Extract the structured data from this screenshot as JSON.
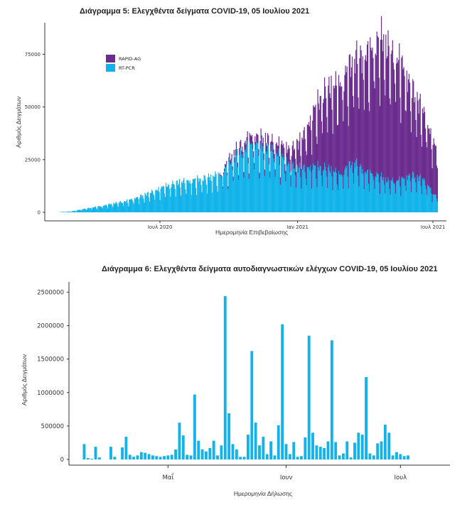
{
  "colors": {
    "rapid": "#6a2c8e",
    "pcr": "#11b3ea",
    "axis": "#333333",
    "tick": "#333333"
  },
  "chart_data": [
    {
      "type": "bar",
      "stacked": true,
      "title": "Διάγραμμα 5: Ελεγχθέντα δείγματα COVID-19, 05 Ιουλίου 2021",
      "xlabel": "Ημερομηνία Επιβεβαίωσης",
      "ylabel": "Αριθμός Δειγμάτων",
      "ylim": [
        0,
        90000
      ],
      "yticks": [
        0,
        25000,
        50000,
        75000
      ],
      "ytick_labels": [
        "0",
        "25000",
        "50000",
        "75000"
      ],
      "xlim_days": [
        0,
        537
      ],
      "xticks": [
        {
          "day": 154,
          "label": "Ιουλ 2020"
        },
        {
          "day": 338,
          "label": "Ιαν 2021"
        },
        {
          "day": 519,
          "label": "Ιουλ 2021"
        }
      ],
      "legend": [
        {
          "name": "RAPID-AG",
          "color": "#6a2c8e"
        },
        {
          "name": "RT-PCR",
          "color": "#11b3ea"
        }
      ],
      "legend_position": "top-left",
      "series": [
        {
          "name": "RT-PCR",
          "day_start": 20,
          "day_end": 525,
          "weekly_low_ratio": 0.55,
          "anchors": [
            [
              20,
              150
            ],
            [
              35,
              400
            ],
            [
              50,
              1500
            ],
            [
              75,
              3000
            ],
            [
              95,
              4500
            ],
            [
              110,
              5500
            ],
            [
              130,
              8000
            ],
            [
              145,
              10000
            ],
            [
              160,
              12500
            ],
            [
              180,
              14500
            ],
            [
              200,
              15500
            ],
            [
              215,
              16500
            ],
            [
              225,
              17500
            ],
            [
              235,
              18000
            ],
            [
              255,
              27000
            ],
            [
              280,
              33000
            ],
            [
              300,
              30000
            ],
            [
              315,
              27000
            ],
            [
              330,
              22000
            ],
            [
              345,
              21000
            ],
            [
              360,
              22000
            ],
            [
              380,
              21000
            ],
            [
              395,
              18000
            ],
            [
              405,
              22000
            ],
            [
              415,
              24000
            ],
            [
              430,
              19000
            ],
            [
              445,
              18000
            ],
            [
              460,
              15000
            ],
            [
              475,
              15500
            ],
            [
              490,
              18000
            ],
            [
              505,
              16000
            ],
            [
              515,
              12000
            ],
            [
              520,
              8000
            ],
            [
              525,
              9000
            ]
          ]
        },
        {
          "name": "RAPID-AG",
          "day_start": 232,
          "day_end": 525,
          "weekly_low_ratio": 0.7,
          "anchors": [
            [
              232,
              0
            ],
            [
              245,
              2000
            ],
            [
              255,
              3000
            ],
            [
              270,
              4000
            ],
            [
              285,
              4000
            ],
            [
              300,
              4500
            ],
            [
              315,
              5500
            ],
            [
              330,
              8000
            ],
            [
              345,
              15000
            ],
            [
              360,
              27000
            ],
            [
              375,
              37000
            ],
            [
              390,
              42000
            ],
            [
              405,
              46000
            ],
            [
              420,
              52000
            ],
            [
              435,
              58000
            ],
            [
              445,
              64000
            ],
            [
              452,
              67000
            ],
            [
              460,
              62000
            ],
            [
              475,
              57000
            ],
            [
              490,
              42000
            ],
            [
              505,
              33000
            ],
            [
              515,
              27000
            ],
            [
              525,
              22000
            ]
          ]
        }
      ]
    },
    {
      "type": "bar",
      "title": "Διάγραμμα 6: Ελεγχθέντα δείγματα αυτοδιαγνωστικών ελέγχων COVID-19, 05 Ιουλίου 2021",
      "xlabel": "Ημερομηνία Δήλωσης",
      "ylabel": "Αριθμός Δειγμάτων",
      "ylim": [
        0,
        2600000
      ],
      "yticks": [
        0,
        500000,
        1000000,
        1500000,
        2000000,
        2500000
      ],
      "ytick_labels": [
        "0",
        "500000",
        "1000000",
        "1500000",
        "2000000",
        "2500000"
      ],
      "xlim_days": [
        0,
        100
      ],
      "xticks": [
        {
          "day": 26,
          "label": "Μαΐ"
        },
        {
          "day": 57,
          "label": "Ιουν"
        },
        {
          "day": 87,
          "label": "Ιουλ"
        }
      ],
      "day_start": 4,
      "values": [
        230000,
        20000,
        10000,
        190000,
        30000,
        0,
        0,
        190000,
        40000,
        0,
        180000,
        340000,
        70000,
        40000,
        60000,
        110000,
        100000,
        80000,
        60000,
        50000,
        40000,
        50000,
        60000,
        70000,
        150000,
        550000,
        360000,
        70000,
        60000,
        970000,
        280000,
        150000,
        120000,
        170000,
        280000,
        60000,
        210000,
        2440000,
        690000,
        230000,
        150000,
        40000,
        40000,
        370000,
        1620000,
        550000,
        210000,
        340000,
        80000,
        270000,
        60000,
        510000,
        2020000,
        230000,
        80000,
        260000,
        40000,
        50000,
        330000,
        1850000,
        400000,
        210000,
        190000,
        170000,
        270000,
        1780000,
        260000,
        60000,
        90000,
        270000,
        30000,
        250000,
        400000,
        370000,
        1230000,
        90000,
        60000,
        240000,
        270000,
        520000,
        400000,
        60000,
        110000,
        80000,
        50000,
        60000
      ]
    }
  ]
}
